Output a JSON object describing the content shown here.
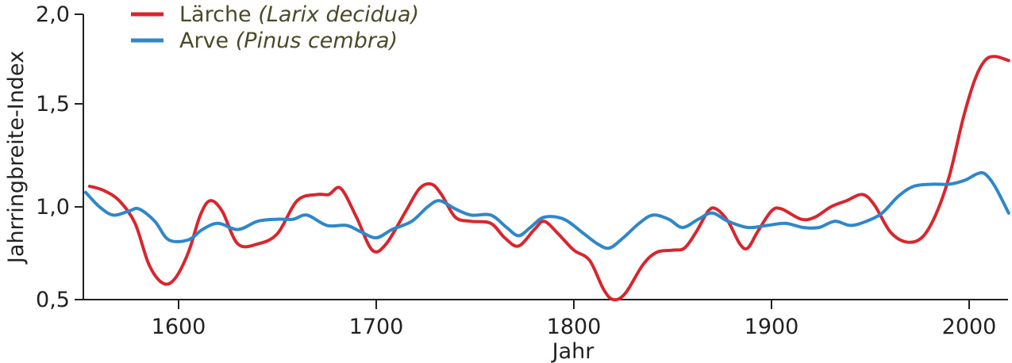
{
  "chart_data": {
    "type": "line",
    "xlabel": "Jahr",
    "ylabel": "Jahrringbreite-Index",
    "xlim": [
      1553,
      2020
    ],
    "ylim": [
      0.5,
      2.0
    ],
    "x_ticks": [
      1600,
      1700,
      1800,
      1900,
      2000
    ],
    "x_tick_labels": [
      "1600",
      "1700",
      "1800",
      "1900",
      "2000"
    ],
    "y_ticks": [
      0.5,
      1.0,
      1.5,
      2.0
    ],
    "y_tick_labels": [
      "0,5",
      "1,0",
      "1,5",
      "2,0"
    ],
    "grid": false,
    "legend_position": "top-left",
    "series": [
      {
        "name": "Lärche",
        "name_italic": "(Larix decidua)",
        "color": "#d9262e",
        "points": [
          [
            1555,
            1.1
          ],
          [
            1562,
            1.08
          ],
          [
            1570,
            1.03
          ],
          [
            1578,
            0.92
          ],
          [
            1585,
            0.72
          ],
          [
            1592,
            0.63
          ],
          [
            1598,
            0.65
          ],
          [
            1605,
            0.78
          ],
          [
            1611,
            0.96
          ],
          [
            1616,
            1.03
          ],
          [
            1622,
            0.98
          ],
          [
            1630,
            0.82
          ],
          [
            1640,
            0.82
          ],
          [
            1650,
            0.87
          ],
          [
            1660,
            1.03
          ],
          [
            1670,
            1.06
          ],
          [
            1676,
            1.06
          ],
          [
            1682,
            1.09
          ],
          [
            1690,
            0.95
          ],
          [
            1698,
            0.79
          ],
          [
            1705,
            0.82
          ],
          [
            1715,
            0.98
          ],
          [
            1722,
            1.09
          ],
          [
            1728,
            1.11
          ],
          [
            1733,
            1.06
          ],
          [
            1740,
            0.95
          ],
          [
            1748,
            0.93
          ],
          [
            1758,
            0.92
          ],
          [
            1765,
            0.85
          ],
          [
            1772,
            0.81
          ],
          [
            1780,
            0.89
          ],
          [
            1785,
            0.93
          ],
          [
            1792,
            0.87
          ],
          [
            1800,
            0.79
          ],
          [
            1808,
            0.74
          ],
          [
            1815,
            0.6
          ],
          [
            1820,
            0.55
          ],
          [
            1826,
            0.58
          ],
          [
            1835,
            0.72
          ],
          [
            1842,
            0.78
          ],
          [
            1850,
            0.79
          ],
          [
            1856,
            0.8
          ],
          [
            1862,
            0.88
          ],
          [
            1868,
            0.98
          ],
          [
            1872,
            0.99
          ],
          [
            1878,
            0.93
          ],
          [
            1884,
            0.82
          ],
          [
            1888,
            0.8
          ],
          [
            1893,
            0.88
          ],
          [
            1900,
            0.98
          ],
          [
            1905,
            0.99
          ],
          [
            1915,
            0.94
          ],
          [
            1922,
            0.95
          ],
          [
            1930,
            1.0
          ],
          [
            1938,
            1.03
          ],
          [
            1946,
            1.06
          ],
          [
            1952,
            1.01
          ],
          [
            1960,
            0.88
          ],
          [
            1968,
            0.83
          ],
          [
            1976,
            0.85
          ],
          [
            1983,
            0.96
          ],
          [
            1990,
            1.15
          ],
          [
            1997,
            1.43
          ],
          [
            2003,
            1.62
          ],
          [
            2008,
            1.71
          ],
          [
            2013,
            1.73
          ],
          [
            2020,
            1.71
          ]
        ]
      },
      {
        "name": "Arve",
        "name_italic": "(Pinus cembra)",
        "color": "#2f86c8",
        "points": [
          [
            1553,
            1.07
          ],
          [
            1560,
            1.0
          ],
          [
            1567,
            0.96
          ],
          [
            1575,
            0.98
          ],
          [
            1580,
            0.99
          ],
          [
            1588,
            0.93
          ],
          [
            1595,
            0.84
          ],
          [
            1605,
            0.84
          ],
          [
            1612,
            0.89
          ],
          [
            1620,
            0.92
          ],
          [
            1630,
            0.89
          ],
          [
            1640,
            0.93
          ],
          [
            1650,
            0.94
          ],
          [
            1658,
            0.94
          ],
          [
            1665,
            0.96
          ],
          [
            1675,
            0.91
          ],
          [
            1685,
            0.91
          ],
          [
            1692,
            0.88
          ],
          [
            1700,
            0.85
          ],
          [
            1708,
            0.89
          ],
          [
            1718,
            0.93
          ],
          [
            1726,
            1.0
          ],
          [
            1732,
            1.03
          ],
          [
            1740,
            0.99
          ],
          [
            1748,
            0.96
          ],
          [
            1758,
            0.96
          ],
          [
            1766,
            0.9
          ],
          [
            1772,
            0.86
          ],
          [
            1778,
            0.9
          ],
          [
            1785,
            0.95
          ],
          [
            1795,
            0.94
          ],
          [
            1805,
            0.87
          ],
          [
            1812,
            0.82
          ],
          [
            1818,
            0.8
          ],
          [
            1825,
            0.85
          ],
          [
            1833,
            0.92
          ],
          [
            1840,
            0.96
          ],
          [
            1848,
            0.94
          ],
          [
            1855,
            0.9
          ],
          [
            1863,
            0.94
          ],
          [
            1870,
            0.97
          ],
          [
            1878,
            0.93
          ],
          [
            1888,
            0.9
          ],
          [
            1898,
            0.91
          ],
          [
            1907,
            0.92
          ],
          [
            1916,
            0.9
          ],
          [
            1924,
            0.9
          ],
          [
            1932,
            0.93
          ],
          [
            1940,
            0.91
          ],
          [
            1948,
            0.93
          ],
          [
            1956,
            0.97
          ],
          [
            1964,
            1.05
          ],
          [
            1972,
            1.1
          ],
          [
            1982,
            1.11
          ],
          [
            1990,
            1.11
          ],
          [
            1998,
            1.13
          ],
          [
            2004,
            1.16
          ],
          [
            2008,
            1.16
          ],
          [
            2013,
            1.1
          ],
          [
            2020,
            0.97
          ]
        ]
      }
    ]
  }
}
